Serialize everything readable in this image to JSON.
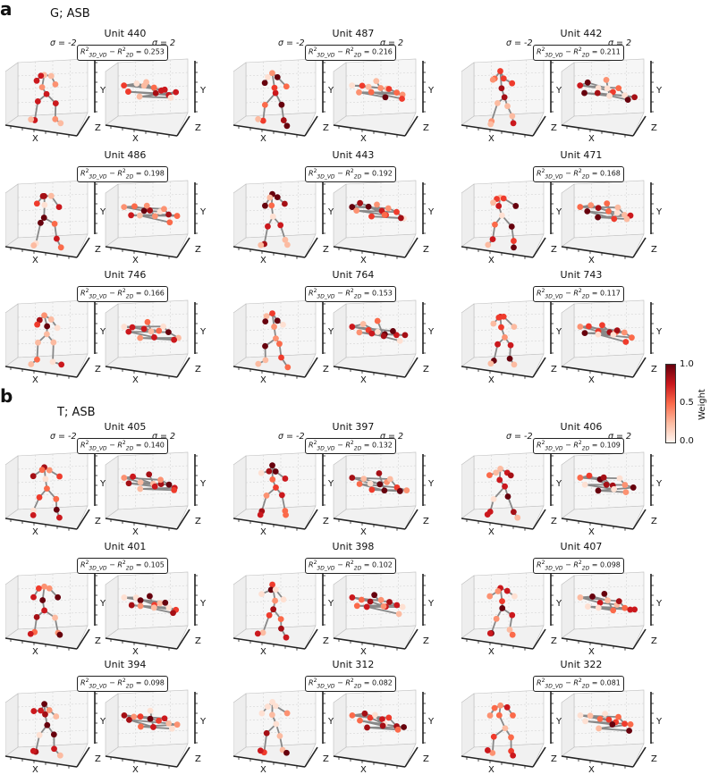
{
  "panels": [
    {
      "letter": "a",
      "title": "G; ASB",
      "units": [
        {
          "unit": "Unit 440",
          "r2": "0.253",
          "sigma_left": "σ = -2",
          "sigma_right": "σ = 2"
        },
        {
          "unit": "Unit 487",
          "r2": "0.216",
          "sigma_left": "σ = -2",
          "sigma_right": "σ = 2"
        },
        {
          "unit": "Unit 442",
          "r2": "0.211",
          "sigma_left": "σ = -2",
          "sigma_right": "σ = 2"
        },
        {
          "unit": "Unit 486",
          "r2": "0.198"
        },
        {
          "unit": "Unit 443",
          "r2": "0.192"
        },
        {
          "unit": "Unit 471",
          "r2": "0.168"
        },
        {
          "unit": "Unit 746",
          "r2": "0.166"
        },
        {
          "unit": "Unit 764",
          "r2": "0.153"
        },
        {
          "unit": "Unit 743",
          "r2": "0.117"
        }
      ]
    },
    {
      "letter": "b",
      "title": "T; ASB",
      "units": [
        {
          "unit": "Unit 405",
          "r2": "0.140",
          "sigma_left": "σ = -2",
          "sigma_right": "σ = 2"
        },
        {
          "unit": "Unit 397",
          "r2": "0.132",
          "sigma_left": "σ = -2",
          "sigma_right": "σ = 2"
        },
        {
          "unit": "Unit 406",
          "r2": "0.109",
          "sigma_left": "σ = -2",
          "sigma_right": "σ = 2"
        },
        {
          "unit": "Unit 401",
          "r2": "0.105"
        },
        {
          "unit": "Unit 398",
          "r2": "0.102"
        },
        {
          "unit": "Unit 407",
          "r2": "0.098"
        },
        {
          "unit": "Unit 394",
          "r2": "0.098"
        },
        {
          "unit": "Unit 312",
          "r2": "0.082"
        },
        {
          "unit": "Unit 322",
          "r2": "0.081"
        }
      ]
    }
  ],
  "r2_label": {
    "a": "R",
    "sup": "2",
    "sub1": "3D_VD",
    "minus": " − ",
    "b": "R",
    "sub2": "2D",
    "eq": " = "
  },
  "axes": {
    "x": "X",
    "y": "Y",
    "z": "Z"
  },
  "colorbar": {
    "label": "Weight",
    "ticks": [
      "1.0",
      "0.5",
      "0.0"
    ],
    "low_color": "#fff5f0",
    "high_color": "#67000d"
  }
}
